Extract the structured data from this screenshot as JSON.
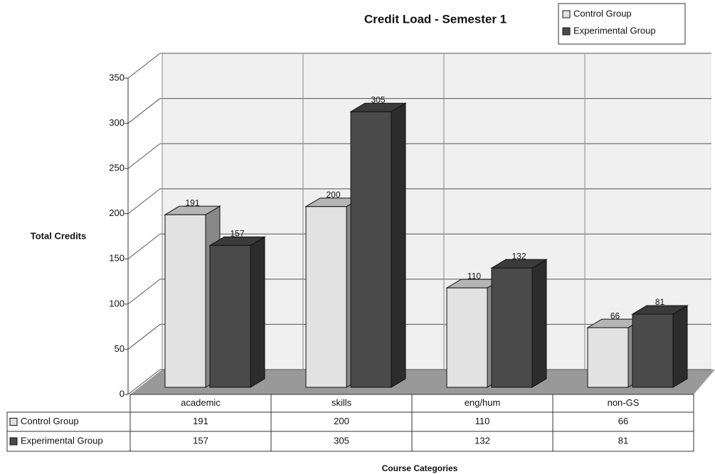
{
  "chart_data": {
    "type": "bar3d",
    "title": "Credit Load - Semester 1",
    "y_label": "Total Credits",
    "x_label": "Course Categories",
    "categories": [
      "academic",
      "skills",
      "eng/hum",
      "non-GS"
    ],
    "series": [
      {
        "name": "Control Group",
        "color": "#e2e2e2",
        "values": [
          191,
          200,
          110,
          66
        ]
      },
      {
        "name": "Experimental Group",
        "color": "#4a4a4a",
        "values": [
          157,
          305,
          132,
          81
        ]
      }
    ],
    "ylim": [
      0,
      350
    ],
    "yticks": [
      0,
      50,
      100,
      150,
      200,
      250,
      300,
      350
    ],
    "grid": true,
    "legend": "top-right",
    "data_table": true
  }
}
